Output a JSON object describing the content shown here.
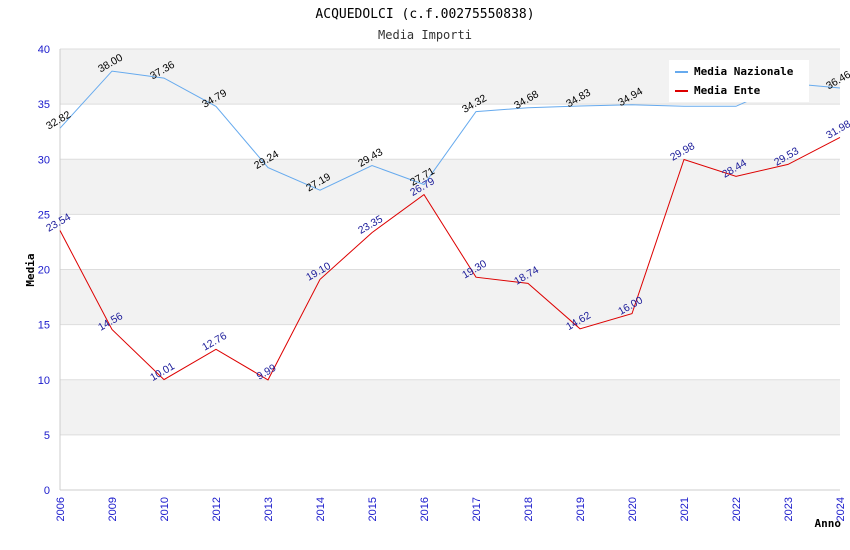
{
  "chart_data": {
    "type": "line",
    "title": "ACQUEDOLCI (c.f.00275550838)",
    "subtitle": "Media Importi",
    "xlabel": "Anno",
    "ylabel": "Media",
    "categories": [
      "2006",
      "2009",
      "2010",
      "2012",
      "2013",
      "2014",
      "2015",
      "2016",
      "2017",
      "2018",
      "2019",
      "2020",
      "2021",
      "2022",
      "2023",
      "2024"
    ],
    "ylim": [
      0,
      40
    ],
    "yticks": [
      0,
      5,
      10,
      15,
      20,
      25,
      30,
      35,
      40
    ],
    "grid": "horizontal bands",
    "legend_position": "top-right",
    "series": [
      {
        "name": "Media Nazionale",
        "color": "#66aaee",
        "values": [
          32.82,
          38.0,
          37.36,
          34.79,
          29.24,
          27.19,
          29.43,
          27.71,
          34.32,
          34.68,
          34.83,
          34.94,
          34.8,
          34.8,
          36.9,
          36.46
        ],
        "labels": [
          "32.82",
          "38.00",
          "37.36",
          "34.79",
          "29.24",
          "27.19",
          "29.43",
          "27.71",
          "34.32",
          "34.68",
          "34.83",
          "34.94",
          "",
          "",
          "",
          "36.46"
        ]
      },
      {
        "name": "Media Ente",
        "color": "#dd0000",
        "values": [
          23.54,
          14.56,
          10.01,
          12.76,
          9.99,
          19.1,
          23.35,
          26.79,
          19.3,
          18.74,
          14.62,
          16.0,
          29.98,
          28.44,
          29.53,
          31.98
        ],
        "labels": [
          "23.54",
          "14.56",
          "10.01",
          "12.76",
          "9.99",
          "19.10",
          "23.35",
          "26.79",
          "19.30",
          "18.74",
          "14.62",
          "16.00",
          "29.98",
          "28.44",
          "29.53",
          "31.98"
        ]
      }
    ]
  }
}
